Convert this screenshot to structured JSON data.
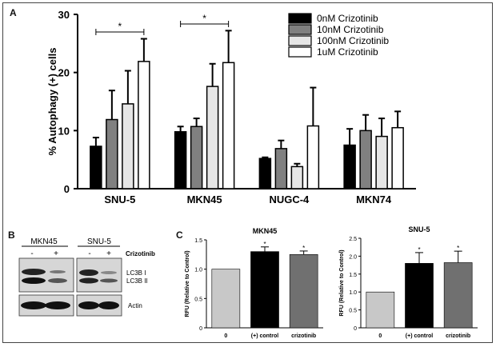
{
  "panel_labels": {
    "a": "A",
    "b": "B",
    "c": "C"
  },
  "chart_data": [
    {
      "panel": "A",
      "type": "bar",
      "title": "",
      "xlabel": "",
      "ylabel": "% Autophagy (+) cells",
      "ylim": [
        0,
        30
      ],
      "yticks": [
        0,
        10,
        20,
        30
      ],
      "categories": [
        "SNU-5",
        "MKN45",
        "NUGC-4",
        "MKN74"
      ],
      "series": [
        {
          "name": "0nM Crizotinib",
          "color": "#000000",
          "values": [
            7.3,
            9.8,
            5.2,
            7.5
          ],
          "errors": [
            1.5,
            0.9,
            0.2,
            2.8
          ]
        },
        {
          "name": "10nM Crizotinib",
          "color": "#808080",
          "values": [
            11.9,
            10.7,
            6.9,
            10.0
          ],
          "errors": [
            5.0,
            1.4,
            1.4,
            2.7
          ]
        },
        {
          "name": "100nM Crizotinib",
          "color": "#e6e6e6",
          "values": [
            14.6,
            17.6,
            3.8,
            9.0
          ],
          "errors": [
            5.7,
            3.9,
            0.5,
            3.1
          ]
        },
        {
          "name": "1uM Crizotinib",
          "color": "#ffffff",
          "values": [
            21.9,
            21.7,
            10.8,
            10.5
          ],
          "errors": [
            3.9,
            5.5,
            6.6,
            2.8
          ]
        }
      ],
      "significance": [
        {
          "category": "SNU-5",
          "label": "*"
        },
        {
          "category": "MKN45",
          "label": "*"
        }
      ],
      "legend": "top-right"
    },
    {
      "panel": "C",
      "type": "bar",
      "title": "MKN45",
      "xlabel": "",
      "ylabel": "RFU (Relative to Control)",
      "ylim": [
        0,
        1.5
      ],
      "yticks": [
        0,
        0.5,
        1.0,
        1.5
      ],
      "ytick_labels": [
        "0",
        "0.5",
        "1.0",
        "1.5"
      ],
      "categories": [
        "0",
        "(+) control",
        "crizotinib"
      ],
      "colors": [
        "#c8c8c8",
        "#000000",
        "#707070"
      ],
      "values": [
        1.0,
        1.3,
        1.25
      ],
      "errors": [
        0,
        0.08,
        0.06
      ],
      "significance": [
        "",
        "*",
        "*"
      ]
    },
    {
      "panel": "C",
      "type": "bar",
      "title": "SNU-5",
      "xlabel": "",
      "ylabel": "RFU (Relative to Control)",
      "ylim": [
        0,
        2.5
      ],
      "yticks": [
        0,
        0.5,
        1.0,
        1.5,
        2.0,
        2.5
      ],
      "ytick_labels": [
        "0",
        "0.5",
        "1.0",
        "1.5",
        "2.0",
        "2.5"
      ],
      "categories": [
        "0",
        "(+) control",
        "crizotinib"
      ],
      "colors": [
        "#c8c8c8",
        "#000000",
        "#707070"
      ],
      "values": [
        1.0,
        1.8,
        1.82
      ],
      "errors": [
        0,
        0.3,
        0.32
      ],
      "significance": [
        "",
        "*",
        "*"
      ]
    }
  ],
  "western_blot": {
    "groups": [
      "MKN45",
      "SNU-5"
    ],
    "lane_signs": [
      "-",
      "+"
    ],
    "treatment_label": "Crizotinib",
    "band_labels": {
      "lc3b_i": "LC3B I",
      "lc3b_ii": "LC3B II",
      "actin": "Actin"
    }
  }
}
